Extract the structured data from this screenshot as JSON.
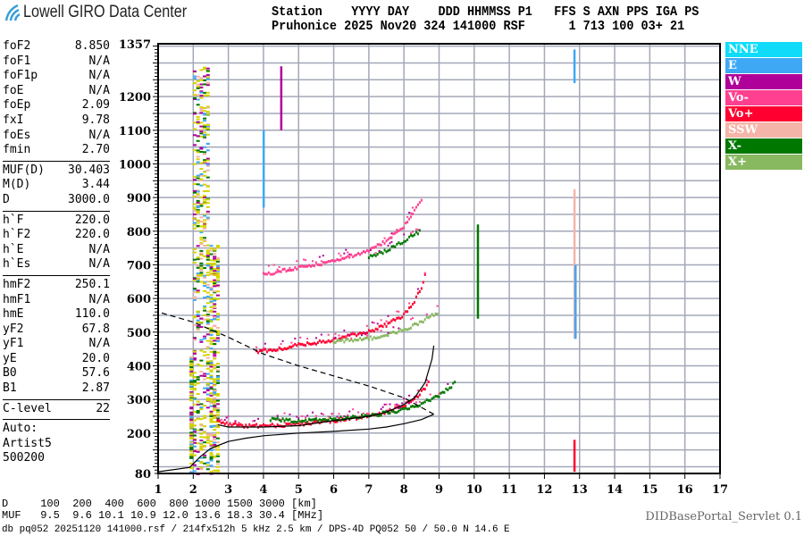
{
  "header": {
    "logo_text": "Lowell GIRO Data Center",
    "line1": "Station    YYYY DAY    DDD HHMMSS P1   FFS S AXN PPS IGA PS",
    "line2": "Pruhonice 2025 Nov20 324 141000 RSF      1 713 100 03+ 21"
  },
  "params": {
    "groups": [
      [
        [
          "foF2",
          "8.850"
        ],
        [
          "foF1",
          "N/A"
        ],
        [
          "foF1p",
          "N/A"
        ],
        [
          "foE",
          "N/A"
        ],
        [
          "foEp",
          "2.09"
        ],
        [
          "fxI",
          "9.78"
        ],
        [
          "foEs",
          "N/A"
        ],
        [
          "fmin",
          "2.70"
        ]
      ],
      [
        [
          "MUF(D)",
          "30.403"
        ],
        [
          "M(D)",
          "3.44"
        ],
        [
          "D",
          "3000.0"
        ]
      ],
      [
        [
          "h`F",
          "220.0"
        ],
        [
          "h`F2",
          "220.0"
        ],
        [
          "h`E",
          "N/A"
        ],
        [
          "h`Es",
          "N/A"
        ]
      ],
      [
        [
          "hmF2",
          "250.1"
        ],
        [
          "hmF1",
          "N/A"
        ],
        [
          "hmE",
          "110.0"
        ],
        [
          "yF2",
          "67.8"
        ],
        [
          "yF1",
          "N/A"
        ],
        [
          "yE",
          "20.0"
        ],
        [
          "B0",
          "57.6"
        ],
        [
          "B1",
          "2.87"
        ]
      ],
      [
        [
          "C-level",
          "22"
        ]
      ]
    ],
    "auto": [
      "Auto:",
      "Artist5",
      "500200"
    ]
  },
  "legend": [
    {
      "label": "NNE",
      "color": "#10dcfa"
    },
    {
      "label": "E",
      "color": "#3ea8f5"
    },
    {
      "label": "W",
      "color": "#b0009a"
    },
    {
      "label": "Vo-",
      "color": "#ff4090"
    },
    {
      "label": "Vo+",
      "color": "#ff0030"
    },
    {
      "label": "SSW",
      "color": "#f5b4a8"
    },
    {
      "label": "X-",
      "color": "#007800"
    },
    {
      "label": "X+",
      "color": "#88b860"
    }
  ],
  "bottom": {
    "d_row": "D     100  200  400  600  800 1000 1500 3000 [km]",
    "muf_row": "MUF   9.5  9.6 10.1 10.9 12.0 13.6 18.3 30.4 [MHz]",
    "db_line": "db pq052 20251120 141000.rsf / 214fx512h 5 kHz 2.5 km / DPS-4D PQ052 50 / 50.0 N 14.6 E",
    "servlet": "DIDBasePortal_Servlet 0.1"
  },
  "chart_data": {
    "type": "scatter",
    "xlabel": "",
    "ylabel": "",
    "xlim": [
      1,
      17
    ],
    "ylim": [
      80,
      1357
    ],
    "x_ticks": [
      "1",
      "2",
      "3",
      "4",
      "5",
      "6",
      "7",
      "8",
      "9",
      "10",
      "11",
      "12",
      "13",
      "14",
      "15",
      "16",
      "17"
    ],
    "y_ticks": [
      "1357",
      "1200",
      "1100",
      "1000",
      "900",
      "800",
      "700",
      "600",
      "500",
      "400",
      "300",
      "200",
      "80"
    ],
    "y_tick_values": [
      1357,
      1200,
      1100,
      1000,
      900,
      800,
      700,
      600,
      500,
      400,
      300,
      200,
      80
    ],
    "grid": true,
    "legend_placement": "right",
    "traces": [
      {
        "mode": "Vo+",
        "color": "#ff0030",
        "points": [
          [
            2.7,
            235
          ],
          [
            3,
            225
          ],
          [
            3.5,
            220
          ],
          [
            4,
            220
          ],
          [
            5,
            225
          ],
          [
            6,
            235
          ],
          [
            7,
            250
          ],
          [
            7.5,
            262
          ],
          [
            8,
            280
          ],
          [
            8.3,
            300
          ],
          [
            8.6,
            330
          ],
          [
            8.7,
            350
          ]
        ]
      },
      {
        "mode": "X-",
        "color": "#007800",
        "points": [
          [
            4.2,
            240
          ],
          [
            5,
            235
          ],
          [
            6,
            240
          ],
          [
            7,
            250
          ],
          [
            8,
            268
          ],
          [
            8.5,
            285
          ],
          [
            9,
            310
          ],
          [
            9.3,
            335
          ],
          [
            9.5,
            350
          ]
        ]
      },
      {
        "mode": "Vo+",
        "color": "#ff0030",
        "points": [
          [
            3.8,
            440
          ],
          [
            4.5,
            450
          ],
          [
            5,
            460
          ],
          [
            6,
            475
          ],
          [
            6.5,
            490
          ],
          [
            7,
            500
          ],
          [
            7.5,
            520
          ],
          [
            8,
            550
          ],
          [
            8.3,
            590
          ],
          [
            8.5,
            630
          ],
          [
            8.6,
            670
          ]
        ]
      },
      {
        "mode": "X+",
        "color": "#88b860",
        "points": [
          [
            6,
            470
          ],
          [
            7,
            480
          ],
          [
            7.5,
            490
          ],
          [
            8,
            505
          ],
          [
            8.5,
            530
          ],
          [
            9,
            560
          ]
        ]
      },
      {
        "mode": "Vo-",
        "color": "#ff4090",
        "points": [
          [
            4,
            670
          ],
          [
            5,
            690
          ],
          [
            6,
            710
          ],
          [
            7,
            740
          ],
          [
            7.5,
            770
          ],
          [
            8,
            810
          ],
          [
            8.3,
            860
          ],
          [
            8.5,
            890
          ]
        ]
      },
      {
        "mode": "X-",
        "color": "#007800",
        "points": [
          [
            7,
            720
          ],
          [
            7.5,
            740
          ],
          [
            8,
            770
          ],
          [
            8.5,
            800
          ]
        ]
      }
    ],
    "vertical_echoes": [
      {
        "f": 12.85,
        "h": [
          480,
          925
        ],
        "color": "#f5b4a8"
      },
      {
        "f": 12.88,
        "h": [
          480,
          700
        ],
        "color": "#3ea8f5"
      },
      {
        "f": 12.85,
        "h": [
          1240,
          1340
        ],
        "color": "#3ea8f5"
      },
      {
        "f": 10.1,
        "h": [
          540,
          820
        ],
        "color": "#007800"
      },
      {
        "f": 4.5,
        "h": [
          1100,
          1290
        ],
        "color": "#b0009a"
      },
      {
        "f": 4.0,
        "h": [
          870,
          1100
        ],
        "color": "#3ea8f5"
      },
      {
        "f": 12.85,
        "h": [
          85,
          180
        ],
        "color": "#ff0030"
      }
    ],
    "clutter": {
      "f": [
        1.9,
        2.75
      ],
      "h": [
        80,
        1290
      ],
      "colors": [
        "#d4d400",
        "#f5b4a8",
        "#3ea8f5",
        "#b0009a",
        "#007800",
        "#d4d400",
        "#d4d400"
      ]
    },
    "virtual_height_curve": [
      [
        2.7,
        225
      ],
      [
        3,
        218
      ],
      [
        4,
        218
      ],
      [
        5,
        222
      ],
      [
        6,
        237
      ],
      [
        7,
        250
      ],
      [
        7.5,
        262
      ],
      [
        8,
        285
      ],
      [
        8.3,
        305
      ],
      [
        8.6,
        350
      ],
      [
        8.8,
        420
      ],
      [
        8.85,
        460
      ]
    ],
    "true_height_profile": [
      [
        1,
        85
      ],
      [
        1.9,
        98
      ],
      [
        2.2,
        130
      ],
      [
        2.5,
        155
      ],
      [
        3,
        175
      ],
      [
        3.5,
        185
      ],
      [
        4,
        192
      ],
      [
        5,
        200
      ],
      [
        6,
        205
      ],
      [
        7,
        212
      ],
      [
        7.5,
        218
      ],
      [
        8,
        228
      ],
      [
        8.5,
        240
      ],
      [
        8.85,
        256
      ]
    ],
    "profile_extrapolation": [
      [
        8.85,
        256
      ],
      [
        8,
        305
      ],
      [
        7,
        340
      ],
      [
        6,
        370
      ],
      [
        5,
        400
      ],
      [
        4,
        435
      ],
      [
        3,
        485
      ],
      [
        2,
        530
      ],
      [
        1,
        560
      ]
    ]
  }
}
